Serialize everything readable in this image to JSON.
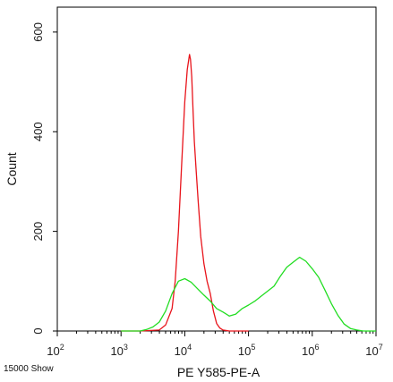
{
  "chart_data": {
    "type": "line",
    "title": "",
    "xlabel": "PE Y585-PE-A",
    "ylabel": "Count",
    "x_scale": "log",
    "xlim": [
      100,
      10000000
    ],
    "ylim": [
      0,
      650
    ],
    "x_ticks": [
      {
        "value": 100,
        "base": "10",
        "exp": "2"
      },
      {
        "value": 1000,
        "base": "10",
        "exp": "3"
      },
      {
        "value": 10000,
        "base": "10",
        "exp": "4"
      },
      {
        "value": 100000,
        "base": "10",
        "exp": "5"
      },
      {
        "value": 1000000,
        "base": "10",
        "exp": "6"
      },
      {
        "value": 10000000,
        "base": "10",
        "exp": "7"
      }
    ],
    "y_ticks": [
      0,
      200,
      400,
      600
    ],
    "grid": false,
    "series": [
      {
        "color": "#e8141b",
        "x": [
          1000,
          1995,
          3981,
          5012,
          6310,
          7079,
          7943,
          8913,
          10000,
          10965,
          11885,
          12303,
          12882,
          13490,
          14125,
          15136,
          16218,
          17783,
          19953,
          22387,
          25119,
          28184,
          31623,
          35481,
          39811,
          50119,
          100000
        ],
        "y": [
          0,
          0,
          2,
          12,
          45,
          100,
          200,
          330,
          460,
          525,
          555,
          545,
          510,
          440,
          380,
          320,
          260,
          190,
          135,
          100,
          75,
          40,
          15,
          6,
          2,
          0,
          0
        ]
      },
      {
        "color": "#22dd22",
        "x": [
          1000,
          1995,
          2512,
          3162,
          3981,
          5012,
          6310,
          7943,
          10000,
          12589,
          15849,
          19953,
          25119,
          31623,
          39811,
          50119,
          63096,
          79433,
          100000,
          125893,
          158489,
          199526,
          251189,
          316228,
          398107,
          501187,
          630957,
          794328,
          1000000,
          1258925,
          1584893,
          1995262,
          2511886,
          3162278,
          3981072,
          5011872,
          6309573,
          10000000
        ],
        "y": [
          0,
          0,
          3,
          8,
          18,
          40,
          75,
          100,
          105,
          98,
          85,
          72,
          60,
          45,
          38,
          30,
          34,
          45,
          52,
          60,
          70,
          80,
          90,
          110,
          128,
          138,
          148,
          140,
          125,
          108,
          82,
          55,
          32,
          14,
          5,
          2,
          0,
          0
        ]
      }
    ]
  },
  "footer_note": "15000 Show"
}
